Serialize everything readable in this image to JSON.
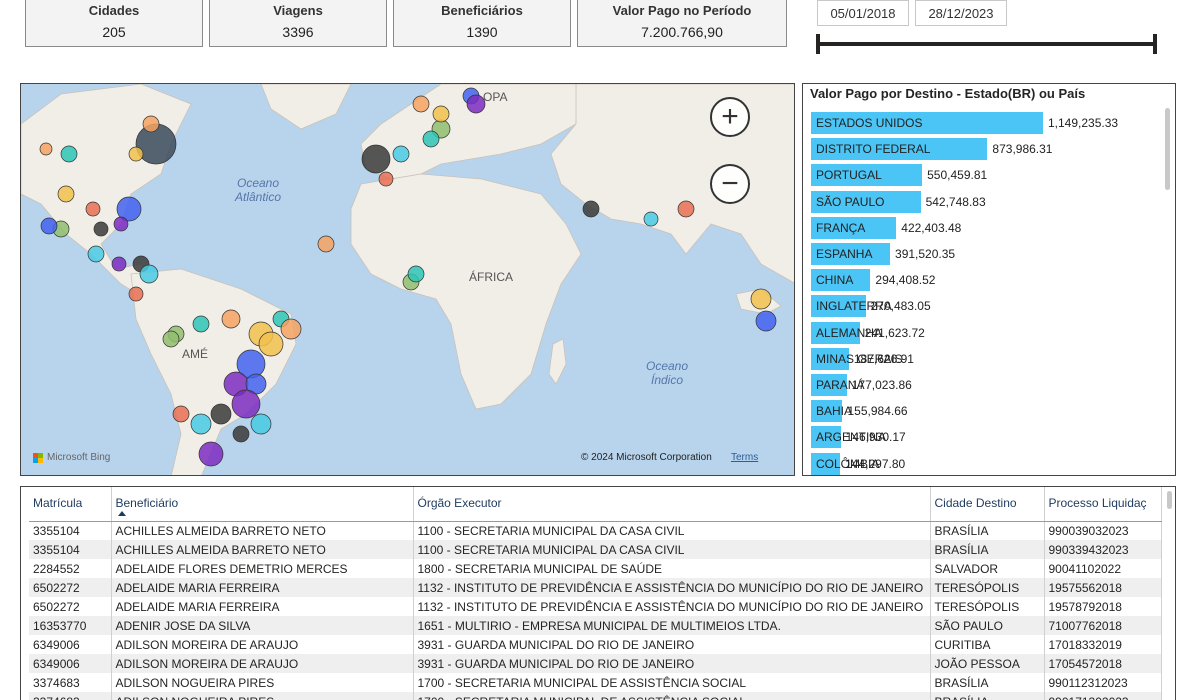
{
  "kpis": [
    {
      "label": "Cidades",
      "value": "205"
    },
    {
      "label": "Viagens",
      "value": "3396"
    },
    {
      "label": "Beneficiários",
      "value": "1390"
    },
    {
      "label": "Valor Pago no Período",
      "value": "7.200.766,90"
    }
  ],
  "date_filter": {
    "start": "05/01/2018",
    "end": "28/12/2023"
  },
  "map": {
    "labels": {
      "ocean_atlantic": "Oceano\nAtlântico",
      "ocean_indian": "Oceano\nÍndico",
      "africa": "ÁFRICA",
      "europe": "OPA",
      "america": "AMÉ"
    },
    "attribution": "Microsoft Bing",
    "copyright": "© 2024 Microsoft Corporation",
    "terms": "Terms",
    "zoom_in": "+",
    "zoom_out": "−",
    "colors": {
      "ocean": "#b8d3ec",
      "land": "#f1eee8",
      "border": "#c9c2b8"
    }
  },
  "chart_data": {
    "type": "bar",
    "title": "Valor Pago por Destino - Estado(BR) ou País",
    "orientation": "horizontal",
    "categories": [
      "ESTADOS UNIDOS",
      "DISTRITO FEDERAL",
      "PORTUGAL",
      "SÃO PAULO",
      "FRANÇA",
      "ESPANHA",
      "CHINA",
      "INGLATERRA",
      "ALEMANHA",
      "MINAS GERAIS",
      "PARANÁ",
      "BAHIA",
      "ARGENTINA",
      "COLÔMBIA"
    ],
    "values": [
      1149235.33,
      873986.31,
      550459.81,
      542748.83,
      422403.48,
      391520.35,
      294408.52,
      270483.05,
      241623.72,
      187626.91,
      177023.86,
      155984.66,
      146930.17,
      144297.8
    ],
    "value_labels": [
      "1,149,235.33",
      "873,986.31",
      "550,459.81",
      "542,748.83",
      "422,403.48",
      "391,520.35",
      "294,408.52",
      "270,483.05",
      "241,623.72",
      "187,626.91",
      "177,023.86",
      "155,984.66",
      "146,930.17",
      "144,297.80"
    ],
    "bar_color": "#4ac5f5"
  },
  "table": {
    "columns": [
      "Matrícula",
      "Beneficiário",
      "Órgão Executor",
      "Cidade Destino",
      "Processo Liquidaç"
    ],
    "rows": [
      [
        "3355104",
        "ACHILLES ALMEIDA BARRETO NETO",
        "1100 - SECRETARIA MUNICIPAL DA CASA CIVIL",
        "BRASÍLIA",
        "990039032023"
      ],
      [
        "3355104",
        "ACHILLES ALMEIDA BARRETO NETO",
        "1100 - SECRETARIA MUNICIPAL DA CASA CIVIL",
        "BRASÍLIA",
        "990339432023"
      ],
      [
        "2284552",
        "ADELAIDE FLORES DEMETRIO MERCES",
        "1800 - SECRETARIA MUNICIPAL DE SAÚDE",
        "SALVADOR",
        "90041102022"
      ],
      [
        "6502272",
        "ADELAIDE MARIA FERREIRA",
        "1132 - INSTITUTO DE PREVIDÊNCIA E ASSISTÊNCIA DO MUNICÍPIO DO RIO DE JANEIRO",
        "TERESÓPOLIS",
        "19575562018"
      ],
      [
        "6502272",
        "ADELAIDE MARIA FERREIRA",
        "1132 - INSTITUTO DE PREVIDÊNCIA E ASSISTÊNCIA DO MUNICÍPIO DO RIO DE JANEIRO",
        "TERESÓPOLIS",
        "19578792018"
      ],
      [
        "16353770",
        "ADENIR JOSE DA SILVA",
        "1651 - MULTIRIO - EMPRESA MUNICIPAL DE MULTIMEIOS LTDA.",
        "SÃO PAULO",
        "71007762018"
      ],
      [
        "6349006",
        "ADILSON MOREIRA DE ARAUJO",
        "3931 - GUARDA MUNICIPAL DO RIO DE JANEIRO",
        "CURITIBA",
        "17018332019"
      ],
      [
        "6349006",
        "ADILSON MOREIRA DE ARAUJO",
        "3931 - GUARDA MUNICIPAL DO RIO DE JANEIRO",
        "JOÃO PESSOA",
        "17054572018"
      ],
      [
        "3374683",
        "ADILSON NOGUEIRA PIRES",
        "1700 - SECRETARIA MUNICIPAL DE ASSISTÊNCIA SOCIAL",
        "BRASÍLIA",
        "990112312023"
      ],
      [
        "3374683",
        "ADILSON NOGUEIRA PIRES",
        "1700 - SECRETARIA MUNICIPAL DE ASSISTÊNCIA SOCIAL",
        "BRASÍLIA",
        "990171302023"
      ]
    ]
  }
}
